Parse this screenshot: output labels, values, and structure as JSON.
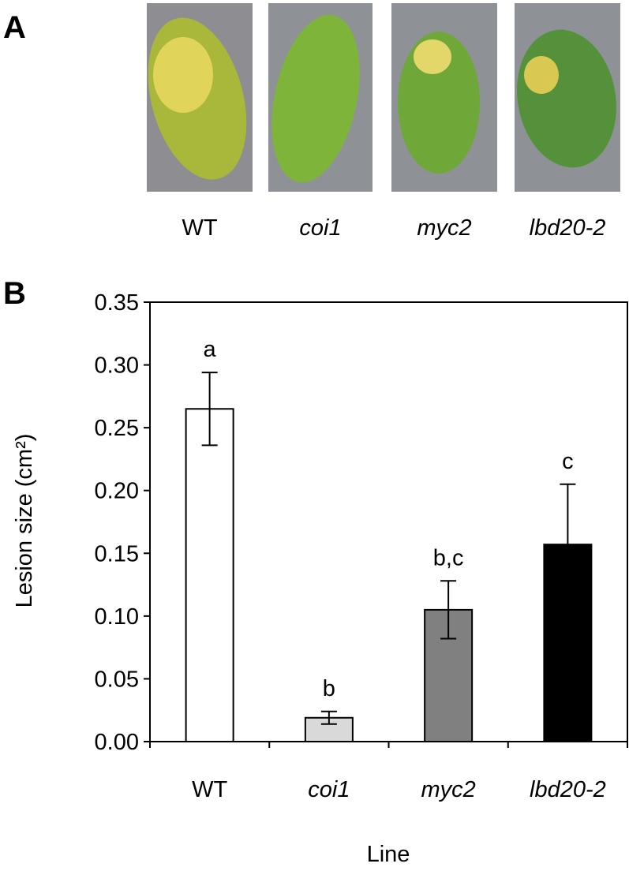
{
  "panel_labels": [
    "A",
    "B"
  ],
  "photos": {
    "labels": [
      "WT",
      "coi1",
      "myc2",
      "lbd20-2"
    ]
  },
  "chart_data": {
    "type": "bar",
    "categories": [
      "WT",
      "coi1",
      "myc2",
      "lbd20-2"
    ],
    "values": [
      0.265,
      0.019,
      0.105,
      0.157
    ],
    "errors": [
      0.029,
      0.005,
      0.023,
      0.048
    ],
    "colors": [
      "#ffffff",
      "#d9d9d9",
      "#808080",
      "#000000"
    ],
    "annotations": [
      "a",
      "b",
      "b,c",
      "c"
    ],
    "xlabel": "Line",
    "ylabel": "Lesion size (cm²)",
    "ylim": [
      0,
      0.35
    ],
    "yticks": [
      {
        "value": 0,
        "label": "0.00"
      },
      {
        "value": 0.05,
        "label": "0.05"
      },
      {
        "value": 0.1,
        "label": "0.10"
      },
      {
        "value": 0.15,
        "label": "0.15"
      },
      {
        "value": 0.2,
        "label": "0.20"
      },
      {
        "value": 0.25,
        "label": "0.25"
      },
      {
        "value": 0.3,
        "label": "0.30"
      },
      {
        "value": 0.35,
        "label": "0.35"
      }
    ]
  }
}
